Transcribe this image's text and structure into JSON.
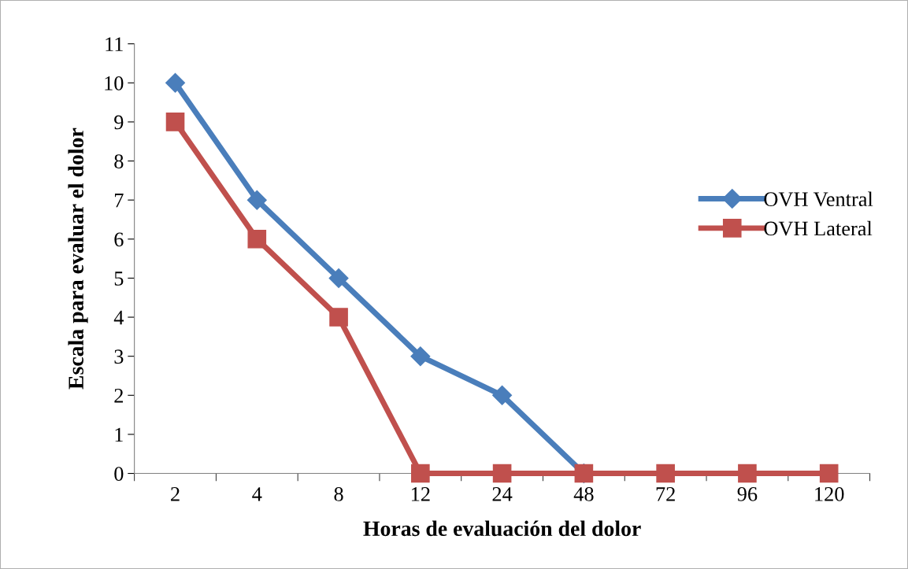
{
  "chart_data": {
    "type": "line",
    "xlabel": "Horas de evaluación del dolor",
    "ylabel": "Escala para evaluar el dolor",
    "categories": [
      "2",
      "4",
      "8",
      "12",
      "24",
      "48",
      "72",
      "96",
      "120"
    ],
    "series": [
      {
        "name": "OVH Ventral",
        "color": "#4a7ebb",
        "marker": "diamond",
        "values": [
          10,
          7,
          5,
          3,
          2,
          0,
          null,
          null,
          null
        ]
      },
      {
        "name": "OVH Lateral",
        "color": "#c0504d",
        "marker": "square",
        "values": [
          9,
          6,
          4,
          0,
          0,
          0,
          0,
          0,
          0
        ]
      }
    ],
    "ylim": [
      0,
      11
    ],
    "yticks": [
      0,
      1,
      2,
      3,
      4,
      5,
      6,
      7,
      8,
      9,
      10,
      11
    ],
    "grid": false,
    "legend": "right",
    "line_style": "solid"
  }
}
